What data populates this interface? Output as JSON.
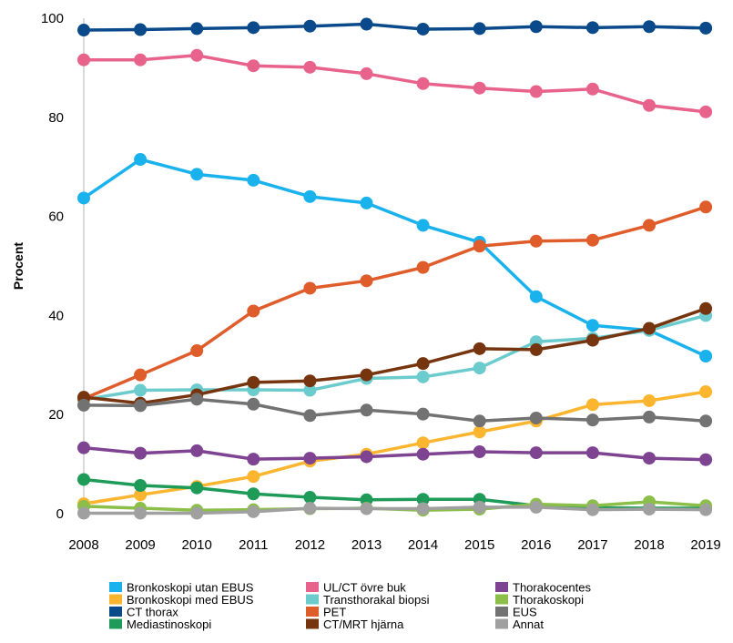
{
  "chart_data": {
    "type": "line",
    "title": "",
    "xlabel": "",
    "ylabel": "Procent",
    "ylim": [
      0,
      100
    ],
    "yticks": [
      0,
      20,
      40,
      60,
      80,
      100
    ],
    "grid": false,
    "legend_position": "bottom",
    "x": [
      "2008",
      "2009",
      "2010",
      "2011",
      "2012",
      "2013",
      "2014",
      "2015",
      "2016",
      "2017",
      "2018",
      "2019"
    ],
    "series": [
      {
        "name": "Bronkoskopi utan EBUS",
        "color": "#1ab2ec",
        "values": [
          63.7,
          71.5,
          68.5,
          67.3,
          64.0,
          62.7,
          58.2,
          54.8,
          43.8,
          38.0,
          37.0,
          31.8
        ]
      },
      {
        "name": "Bronkoskopi med EBUS",
        "color": "#fbb52e",
        "values": [
          2.0,
          3.8,
          5.5,
          7.5,
          10.6,
          12.0,
          14.3,
          16.5,
          18.7,
          22.0,
          22.8,
          24.6
        ]
      },
      {
        "name": "CT thorax",
        "color": "#0b4a8a",
        "values": [
          97.6,
          97.7,
          97.9,
          98.1,
          98.4,
          98.8,
          97.8,
          97.9,
          98.3,
          98.1,
          98.3,
          98.0
        ]
      },
      {
        "name": "Mediastinoskopi",
        "color": "#1e9b59",
        "values": [
          6.9,
          5.7,
          5.2,
          4.0,
          3.3,
          2.8,
          2.9,
          2.9,
          1.6,
          1.2,
          1.1,
          1.1
        ]
      },
      {
        "name": "UL/CT övre buk",
        "color": "#e8638b",
        "values": [
          91.6,
          91.6,
          92.5,
          90.4,
          90.1,
          88.8,
          86.8,
          85.9,
          85.2,
          85.7,
          82.4,
          81.1
        ]
      },
      {
        "name": "Transthorakal biopsi",
        "color": "#6bcbcd",
        "values": [
          23.0,
          24.9,
          25.0,
          25.0,
          24.9,
          27.3,
          27.6,
          29.4,
          34.7,
          35.4,
          37.0,
          40.0
        ]
      },
      {
        "name": "PET",
        "color": "#df5c2b",
        "values": [
          23.2,
          28.0,
          32.9,
          40.9,
          45.5,
          47.0,
          49.7,
          54.0,
          55.0,
          55.2,
          58.2,
          61.9
        ]
      },
      {
        "name": "CT/MRT hjärna",
        "color": "#76350f",
        "values": [
          23.5,
          22.3,
          24.0,
          26.5,
          26.8,
          28.0,
          30.3,
          33.3,
          33.1,
          35.0,
          37.4,
          41.4
        ]
      },
      {
        "name": "Thorakocentes",
        "color": "#7e4391",
        "values": [
          13.3,
          12.2,
          12.7,
          11.0,
          11.2,
          11.5,
          12.0,
          12.5,
          12.3,
          12.3,
          11.2,
          10.9
        ]
      },
      {
        "name": "Thorakoskopi",
        "color": "#8cbf4a",
        "values": [
          1.5,
          1.1,
          0.7,
          0.8,
          1.0,
          1.1,
          0.7,
          0.9,
          1.9,
          1.6,
          2.4,
          1.6
        ]
      },
      {
        "name": "EUS",
        "color": "#727272",
        "values": [
          21.9,
          21.8,
          23.1,
          22.1,
          19.8,
          20.9,
          20.1,
          18.7,
          19.3,
          18.9,
          19.5,
          18.7
        ]
      },
      {
        "name": "Annat",
        "color": "#a0a0a0",
        "values": [
          0.1,
          0.1,
          0.1,
          0.4,
          1.1,
          1.0,
          1.0,
          1.3,
          1.3,
          0.8,
          0.9,
          0.8
        ]
      }
    ]
  }
}
